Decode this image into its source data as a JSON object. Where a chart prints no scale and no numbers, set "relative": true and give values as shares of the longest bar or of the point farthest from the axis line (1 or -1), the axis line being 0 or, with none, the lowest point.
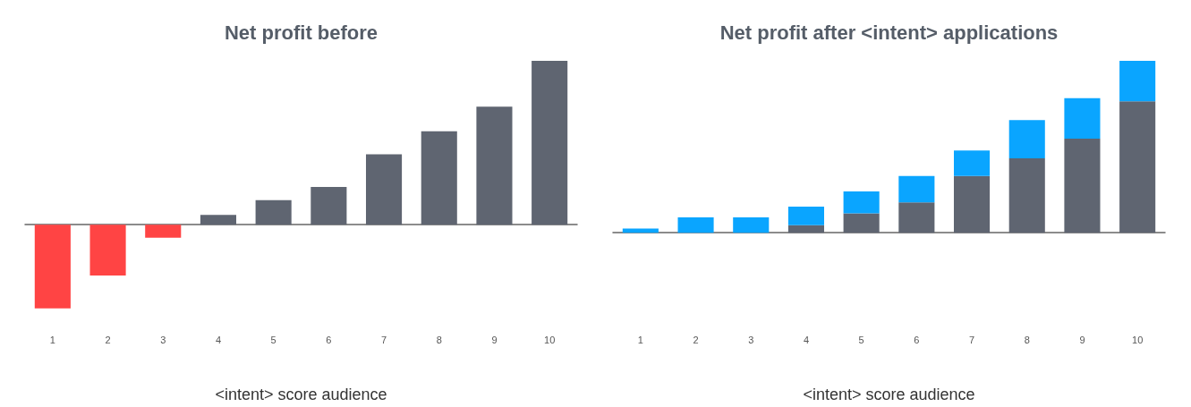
{
  "chart_data": [
    {
      "type": "bar",
      "title": "Net profit before",
      "xlabel": "<intent> score audience",
      "relative": true,
      "categories": [
        "1",
        "2",
        "3",
        "4",
        "5",
        "6",
        "7",
        "8",
        "9",
        "10"
      ],
      "values": [
        -0.51,
        -0.31,
        -0.08,
        0.06,
        0.15,
        0.23,
        0.43,
        0.57,
        0.72,
        1
      ],
      "colors": [
        "#ff4444",
        "#ff4444",
        "#ff4444",
        "#5f6571",
        "#5f6571",
        "#5f6571",
        "#5f6571",
        "#5f6571",
        "#5f6571",
        "#5f6571"
      ]
    },
    {
      "type": "bar",
      "title": "Net profit after <intent> applications",
      "xlabel": "<intent> score audience",
      "relative": true,
      "stacked": true,
      "categories": [
        "1",
        "2",
        "3",
        "4",
        "5",
        "6",
        "7",
        "8",
        "9",
        "10"
      ],
      "series": [
        {
          "color": "#5f6571",
          "values": [
            0,
            0,
            0,
            0.044,
            0.113,
            0.177,
            0.33,
            0.433,
            0.547,
            0.764
          ]
        },
        {
          "color": "#0aa5ff",
          "values": [
            0.025,
            0.089,
            0.089,
            0.108,
            0.128,
            0.153,
            0.148,
            0.222,
            0.236,
            0.236
          ]
        }
      ]
    }
  ]
}
